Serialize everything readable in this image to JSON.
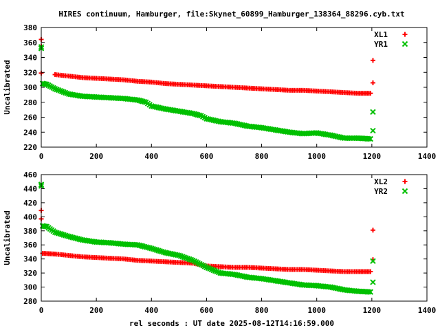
{
  "title": "HIRES continuum, Hamburger, file:Skynet_60899_Hamburger_138364_88296.cyb.txt",
  "xlabel": "rel seconds : UT date 2025-08-12T14:16:59.000",
  "colors": {
    "red": "#ff0000",
    "green": "#00c000",
    "axis": "#000000",
    "background": "#ffffff"
  },
  "chart_data": [
    {
      "type": "scatter",
      "ylabel": "Uncalibrated",
      "xlim": [
        0,
        1400
      ],
      "ylim": [
        220,
        380
      ],
      "x_ticks": [
        0,
        200,
        400,
        600,
        800,
        1000,
        1200,
        1400
      ],
      "y_ticks": [
        220,
        240,
        260,
        280,
        300,
        320,
        340,
        360,
        380
      ],
      "legend_position": "top-right",
      "series": [
        {
          "name": "XL1",
          "color": "#ff0000",
          "marker": "plus",
          "points": [
            [
              0,
              364
            ],
            [
              0,
              355
            ],
            [
              0,
              319
            ],
            [
              50,
              317
            ],
            [
              100,
              315
            ],
            [
              150,
              313
            ],
            [
              200,
              312
            ],
            [
              250,
              311
            ],
            [
              300,
              310
            ],
            [
              350,
              308
            ],
            [
              400,
              307
            ],
            [
              450,
              305
            ],
            [
              500,
              304
            ],
            [
              550,
              303
            ],
            [
              600,
              302
            ],
            [
              650,
              301
            ],
            [
              700,
              300
            ],
            [
              750,
              299
            ],
            [
              800,
              298
            ],
            [
              850,
              297
            ],
            [
              900,
              296
            ],
            [
              950,
              296
            ],
            [
              1000,
              295
            ],
            [
              1050,
              294
            ],
            [
              1100,
              293
            ],
            [
              1150,
              292
            ],
            [
              1195,
              292
            ],
            [
              1204,
              336
            ],
            [
              1204,
              306
            ]
          ]
        },
        {
          "name": "YR1",
          "color": "#00c000",
          "marker": "cross",
          "points": [
            [
              0,
              354
            ],
            [
              0,
              352
            ],
            [
              5,
              305
            ],
            [
              20,
              304
            ],
            [
              50,
              298
            ],
            [
              100,
              291
            ],
            [
              150,
              288
            ],
            [
              200,
              287
            ],
            [
              250,
              286
            ],
            [
              300,
              285
            ],
            [
              350,
              283
            ],
            [
              380,
              280
            ],
            [
              400,
              275
            ],
            [
              450,
              271
            ],
            [
              500,
              268
            ],
            [
              550,
              265
            ],
            [
              580,
              262
            ],
            [
              600,
              258
            ],
            [
              650,
              254
            ],
            [
              700,
              252
            ],
            [
              750,
              248
            ],
            [
              800,
              246
            ],
            [
              850,
              243
            ],
            [
              900,
              240
            ],
            [
              950,
              238
            ],
            [
              1000,
              239
            ],
            [
              1050,
              236
            ],
            [
              1100,
              232
            ],
            [
              1150,
              232
            ],
            [
              1195,
              231
            ],
            [
              1204,
              267
            ],
            [
              1204,
              242
            ]
          ]
        }
      ]
    },
    {
      "type": "scatter",
      "ylabel": "Uncalibrated",
      "xlim": [
        0,
        1400
      ],
      "ylim": [
        280,
        460
      ],
      "x_ticks": [
        0,
        200,
        400,
        600,
        800,
        1000,
        1200,
        1400
      ],
      "y_ticks": [
        280,
        300,
        320,
        340,
        360,
        380,
        400,
        420,
        440,
        460
      ],
      "legend_position": "top-right",
      "series": [
        {
          "name": "XL2",
          "color": "#ff0000",
          "marker": "plus",
          "points": [
            [
              0,
              409
            ],
            [
              0,
              397
            ],
            [
              5,
              348
            ],
            [
              50,
              347
            ],
            [
              100,
              345
            ],
            [
              150,
              343
            ],
            [
              200,
              342
            ],
            [
              250,
              341
            ],
            [
              300,
              340
            ],
            [
              350,
              338
            ],
            [
              400,
              337
            ],
            [
              450,
              336
            ],
            [
              500,
              335
            ],
            [
              550,
              334
            ],
            [
              600,
              330
            ],
            [
              650,
              329
            ],
            [
              700,
              328
            ],
            [
              750,
              328
            ],
            [
              800,
              327
            ],
            [
              850,
              326
            ],
            [
              900,
              325
            ],
            [
              950,
              325
            ],
            [
              1000,
              324
            ],
            [
              1050,
              323
            ],
            [
              1100,
              322
            ],
            [
              1150,
              322
            ],
            [
              1195,
              322
            ],
            [
              1204,
              381
            ],
            [
              1204,
              339
            ]
          ]
        },
        {
          "name": "YR2",
          "color": "#00c000",
          "marker": "cross",
          "points": [
            [
              0,
              446
            ],
            [
              0,
              444
            ],
            [
              5,
              387
            ],
            [
              20,
              386
            ],
            [
              50,
              378
            ],
            [
              100,
              372
            ],
            [
              150,
              367
            ],
            [
              200,
              364
            ],
            [
              250,
              363
            ],
            [
              300,
              361
            ],
            [
              350,
              360
            ],
            [
              400,
              355
            ],
            [
              450,
              349
            ],
            [
              500,
              345
            ],
            [
              550,
              338
            ],
            [
              600,
              328
            ],
            [
              650,
              320
            ],
            [
              700,
              318
            ],
            [
              750,
              314
            ],
            [
              800,
              312
            ],
            [
              850,
              309
            ],
            [
              900,
              306
            ],
            [
              950,
              303
            ],
            [
              1000,
              302
            ],
            [
              1050,
              300
            ],
            [
              1100,
              296
            ],
            [
              1150,
              294
            ],
            [
              1195,
              293
            ],
            [
              1204,
              337
            ],
            [
              1204,
              307
            ]
          ]
        }
      ]
    }
  ]
}
